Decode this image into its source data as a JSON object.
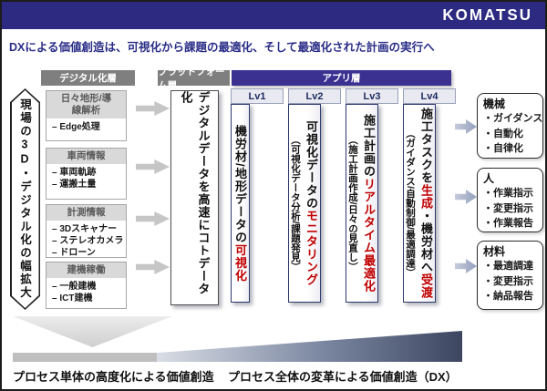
{
  "brand": {
    "logo": "KOMATSU"
  },
  "title": "DXによる価値創造は、可視化から課題の最適化、そして最適化された計画の実行へ",
  "bullets": {
    "dash": "–  ",
    "dot": "・"
  },
  "layer_headers": {
    "digital": "デジタル化層",
    "platform": "プラットフォーム層",
    "app": "アプリ層"
  },
  "left_banner": "現場の3D・デジタル化の幅拡大",
  "source_boxes": [
    {
      "header": "日々地形/導線解析",
      "items": [
        "Edge処理"
      ]
    },
    {
      "header": "車両情報",
      "items": [
        "車両軌跡",
        "運搬土量"
      ]
    },
    {
      "header": "計測情報",
      "items": [
        "3Dスキャナー",
        "ステレオカメラ",
        "ドローン"
      ]
    },
    {
      "header": "建機稼働",
      "items": [
        "一般建機",
        "ICT建機"
      ]
    }
  ],
  "platform_box": "デジタルデータを高速にコトデータ化",
  "levels": [
    {
      "label": "Lv1",
      "main": [
        {
          "t": "機労材/地形データの"
        },
        {
          "t": "可視化",
          "red": true
        }
      ],
      "sub": []
    },
    {
      "label": "Lv2",
      "main": [
        {
          "t": "可視化データの"
        },
        {
          "t": "モニタリング",
          "red": true
        }
      ],
      "sub": [
        {
          "t": "（可視化データ分析/課題発見）"
        }
      ]
    },
    {
      "label": "Lv3",
      "main": [
        {
          "t": "施工計画の"
        },
        {
          "t": "リアルタイム最適化",
          "red": true
        }
      ],
      "sub": [
        {
          "t": "（施工計画作成/日々の見直し）"
        }
      ]
    },
    {
      "label": "Lv4",
      "main": [
        {
          "t": "施工タスクを"
        },
        {
          "t": "生成",
          "red": true
        },
        {
          "t": "・機労材へ"
        },
        {
          "t": "受渡",
          "red": true
        }
      ],
      "sub": [
        {
          "t": "（ガイダンス/自動制御/最適調達）"
        }
      ]
    }
  ],
  "outputs": [
    {
      "title": "機械",
      "items": [
        "ガイダンス",
        "自動化",
        "自律化"
      ]
    },
    {
      "title": "人",
      "items": [
        "作業指示",
        "変更指示",
        "作業報告"
      ]
    },
    {
      "title": "材料",
      "items": [
        "最適調達",
        "変更指示",
        "納品報告"
      ]
    }
  ],
  "footer": {
    "left_label": "プロセス単体の高度化による価値創造",
    "right_label": "プロセス全体の変革による価値創造（DX）"
  },
  "colors": {
    "band_navy": "#2c2a81",
    "app_purple": "#3a3191",
    "title_blue": "#2b2e87",
    "highlight_red": "#c00000",
    "header_gray": "#7f7f7f",
    "box_header_bg": "#d9d9d9",
    "arrow_gray": "#c6c6c6",
    "arrow_blue": "#93a0bd",
    "wedge_dark": "#3d4660",
    "flat_bar_gray": "#bfbfbf"
  }
}
